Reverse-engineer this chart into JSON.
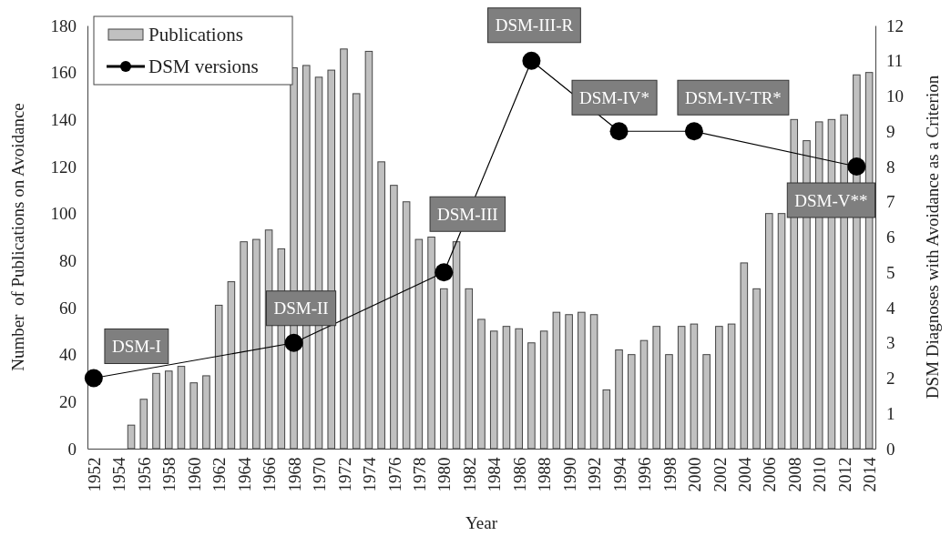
{
  "chart_data": {
    "type": "bar",
    "xlabel": "Year",
    "ylabel": "Number  of Publications on Avoidance",
    "y2label": "DSM Diagnoses with Avoidance as a Criterion",
    "x": [
      1952,
      1953,
      1954,
      1955,
      1956,
      1957,
      1958,
      1959,
      1960,
      1961,
      1962,
      1963,
      1964,
      1965,
      1966,
      1967,
      1968,
      1969,
      1970,
      1971,
      1972,
      1973,
      1974,
      1975,
      1976,
      1977,
      1978,
      1979,
      1980,
      1981,
      1982,
      1983,
      1984,
      1985,
      1986,
      1987,
      1988,
      1989,
      1990,
      1991,
      1992,
      1993,
      1994,
      1995,
      1996,
      1997,
      1998,
      1999,
      2000,
      2001,
      2002,
      2003,
      2004,
      2005,
      2006,
      2007,
      2008,
      2009,
      2010,
      2011,
      2012,
      2013,
      2014
    ],
    "xlim": [
      1951.5,
      2014.5
    ],
    "xticks": [
      1952,
      1954,
      1956,
      1958,
      1960,
      1962,
      1964,
      1966,
      1968,
      1970,
      1972,
      1974,
      1976,
      1978,
      1980,
      1982,
      1984,
      1986,
      1988,
      1990,
      1992,
      1994,
      1996,
      1998,
      2000,
      2002,
      2004,
      2006,
      2008,
      2010,
      2012,
      2014
    ],
    "ylim": [
      0,
      180
    ],
    "yticks": [
      0,
      20,
      40,
      60,
      80,
      100,
      120,
      140,
      160,
      180
    ],
    "y2lim": [
      0,
      12
    ],
    "y2ticks": [
      0,
      1,
      2,
      3,
      4,
      5,
      6,
      7,
      8,
      9,
      10,
      11,
      12
    ],
    "series": [
      {
        "name": "Publications",
        "color": "#c0c0c0",
        "values": [
          0,
          0,
          0,
          10,
          21,
          32,
          33,
          35,
          28,
          31,
          61,
          71,
          88,
          89,
          93,
          85,
          162,
          163,
          158,
          161,
          170,
          151,
          169,
          122,
          112,
          105,
          89,
          90,
          68,
          88,
          68,
          55,
          50,
          52,
          51,
          45,
          50,
          58,
          57,
          58,
          57,
          25,
          42,
          40,
          46,
          52,
          40,
          52,
          53,
          40,
          52,
          53,
          79,
          68,
          100,
          100,
          140,
          131,
          139,
          140,
          142,
          159,
          160
        ]
      },
      {
        "name": "DSM versions",
        "type": "line",
        "axis": "y2",
        "color": "#000000",
        "marker": "circle",
        "line_style": "solid",
        "x": [
          1952,
          1968,
          1980,
          1987,
          1994,
          2000,
          2013
        ],
        "values": [
          2,
          3,
          5,
          11,
          9,
          9,
          8
        ]
      }
    ],
    "annotations": [
      "DSM-I",
      "DSM-II",
      "DSM-III",
      "DSM-III-R",
      "DSM-IV*",
      "DSM-IV-TR*",
      "DSM-V**"
    ],
    "legend": "top left"
  }
}
